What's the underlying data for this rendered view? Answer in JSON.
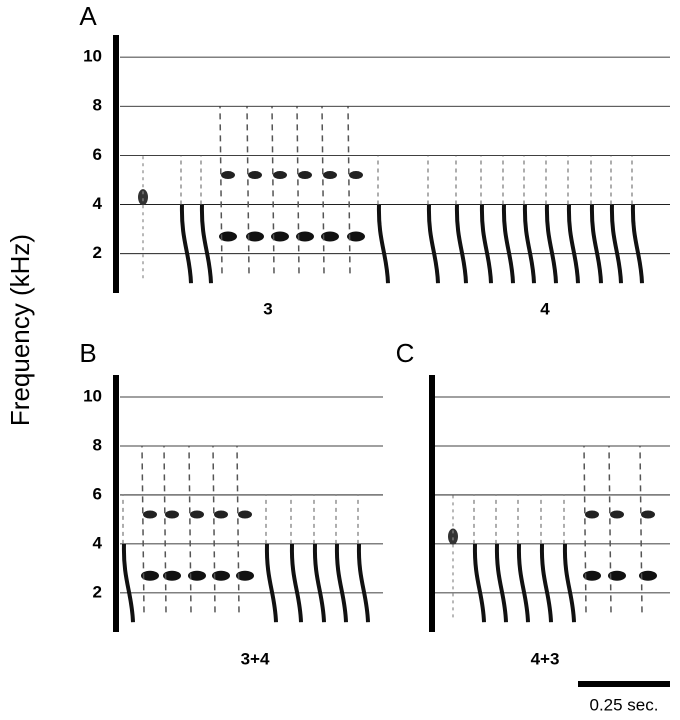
{
  "ylabel": "Frequency (kHz)",
  "scale_bar": "0.25 sec.",
  "chart_data": [
    {
      "type": "spectrogram",
      "panel": "A",
      "ylim": [
        0.4,
        10.9
      ],
      "yticks": [
        2,
        4,
        6,
        8,
        10
      ],
      "show_tick_labels": true,
      "segment_labels": [
        "3",
        "4"
      ]
    },
    {
      "type": "spectrogram",
      "panel": "B",
      "ylim": [
        0.4,
        10.9
      ],
      "yticks": [
        2,
        4,
        6,
        8,
        10
      ],
      "show_tick_labels": true,
      "segment_labels": [
        "3+4"
      ]
    },
    {
      "type": "spectrogram",
      "panel": "C",
      "ylim": [
        0.4,
        10.9
      ],
      "yticks": [
        2,
        4,
        6,
        8,
        10
      ],
      "show_tick_labels": false,
      "segment_labels": [
        "4+3"
      ]
    }
  ]
}
